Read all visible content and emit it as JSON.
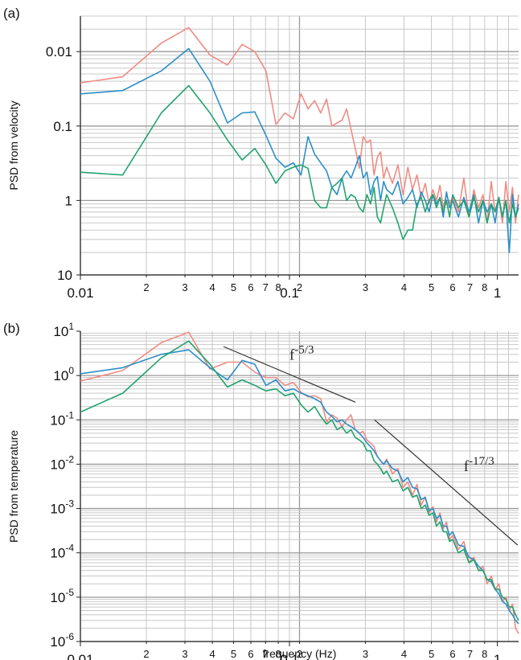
{
  "chart_data": [
    {
      "type": "line",
      "panel_label": "(a)",
      "title": "",
      "xlabel": "",
      "ylabel": "PSD from velocity",
      "xscale": "log",
      "yscale": "log",
      "xlim": [
        0.01,
        1
      ],
      "ylim": [
        0.01,
        30
      ],
      "grid": true,
      "legend": "none",
      "y_tick_labels": [
        "0.01",
        "0.1",
        "1",
        "10"
      ],
      "x_tick_labels": [
        "0.01",
        "2",
        "3",
        "4",
        "5",
        "6",
        "7",
        "8",
        "0.1",
        "2",
        "3",
        "4",
        "5",
        "6",
        "7",
        "8",
        "1"
      ],
      "series": [
        {
          "color": "#f08c84",
          "x": [
            0.01,
            0.0156,
            0.0234,
            0.0312,
            0.039,
            0.0469,
            0.0547,
            0.0625,
            0.0703,
            0.0781,
            0.0859,
            0.0938,
            0.1016,
            0.1094,
            0.1172,
            0.125,
            0.1328,
            0.1406,
            0.1484,
            0.1563,
            0.1641,
            0.1719,
            0.1797,
            0.1875,
            0.1953,
            0.2031,
            0.2109,
            0.2188,
            0.2266,
            0.2344,
            0.2422,
            0.25,
            0.2656,
            0.2812,
            0.2969,
            0.3125,
            0.3281,
            0.3438,
            0.3594,
            0.375,
            0.3906,
            0.4063,
            0.4219,
            0.4375,
            0.4531,
            0.4688,
            0.4844,
            0.5,
            0.5313,
            0.5625,
            0.5938,
            0.625,
            0.6563,
            0.6875,
            0.7188,
            0.75,
            0.7813,
            0.8125,
            0.8438,
            0.875,
            0.9063,
            0.9375,
            0.9688,
            1.0
          ],
          "y": [
            3.8,
            4.6,
            13,
            21,
            9,
            6.6,
            12.5,
            10,
            5.5,
            1.05,
            1.5,
            1.25,
            2.7,
            1.7,
            2.2,
            1.5,
            2.3,
            1.0,
            1.1,
            1.2,
            1.7,
            0.9,
            0.5,
            0.27,
            0.72,
            0.6,
            0.65,
            0.22,
            0.38,
            0.45,
            0.2,
            0.28,
            0.17,
            0.3,
            0.12,
            0.28,
            0.14,
            0.22,
            0.11,
            0.17,
            0.09,
            0.14,
            0.1,
            0.16,
            0.08,
            0.12,
            0.09,
            0.11,
            0.07,
            0.2,
            0.06,
            0.14,
            0.08,
            0.12,
            0.05,
            0.18,
            0.07,
            0.11,
            0.05,
            0.18,
            0.07,
            0.15,
            0.05,
            0.12
          ]
        },
        {
          "color": "#2b8fc9",
          "x": [
            0.01,
            0.0156,
            0.0234,
            0.0312,
            0.039,
            0.0469,
            0.0547,
            0.0625,
            0.0703,
            0.0781,
            0.0859,
            0.0938,
            0.1016,
            0.1094,
            0.1172,
            0.125,
            0.1328,
            0.1406,
            0.1484,
            0.1563,
            0.1641,
            0.1719,
            0.1797,
            0.1875,
            0.1953,
            0.2031,
            0.2109,
            0.2188,
            0.2266,
            0.2344,
            0.2422,
            0.25,
            0.2656,
            0.2812,
            0.2969,
            0.3125,
            0.3281,
            0.3438,
            0.3594,
            0.375,
            0.3906,
            0.4063,
            0.4219,
            0.4375,
            0.4531,
            0.4688,
            0.4844,
            0.5,
            0.5313,
            0.5625,
            0.5938,
            0.625,
            0.6563,
            0.6875,
            0.7188,
            0.75,
            0.7813,
            0.8125,
            0.8438,
            0.875,
            0.9063,
            0.9375,
            0.9688,
            1.0
          ],
          "y": [
            2.7,
            3.0,
            5.5,
            11,
            4.0,
            1.1,
            1.5,
            1.55,
            0.75,
            0.37,
            0.28,
            0.32,
            0.22,
            0.72,
            0.42,
            0.32,
            0.25,
            0.15,
            0.12,
            0.2,
            0.25,
            0.2,
            0.28,
            0.4,
            0.2,
            0.24,
            0.12,
            0.18,
            0.21,
            0.1,
            0.18,
            0.14,
            0.12,
            0.18,
            0.09,
            0.11,
            0.14,
            0.08,
            0.13,
            0.1,
            0.07,
            0.12,
            0.09,
            0.11,
            0.06,
            0.13,
            0.08,
            0.1,
            0.06,
            0.11,
            0.07,
            0.12,
            0.05,
            0.1,
            0.07,
            0.09,
            0.05,
            0.11,
            0.06,
            0.1,
            0.02,
            0.12,
            0.06,
            0.09
          ]
        },
        {
          "color": "#21a36f",
          "x": [
            0.01,
            0.0156,
            0.0234,
            0.0312,
            0.039,
            0.0469,
            0.0547,
            0.0625,
            0.0703,
            0.0781,
            0.0859,
            0.0938,
            0.1016,
            0.1094,
            0.1172,
            0.125,
            0.1328,
            0.1406,
            0.1484,
            0.1563,
            0.1641,
            0.1719,
            0.1797,
            0.1875,
            0.1953,
            0.2031,
            0.2109,
            0.2188,
            0.2266,
            0.2344,
            0.2422,
            0.25,
            0.2656,
            0.2812,
            0.2969,
            0.3125,
            0.3281,
            0.3438,
            0.3594,
            0.375,
            0.3906,
            0.4063,
            0.4219,
            0.4375,
            0.4531,
            0.4688,
            0.4844,
            0.5,
            0.5313,
            0.5625,
            0.5938,
            0.625,
            0.6563,
            0.6875,
            0.7188,
            0.75,
            0.7813,
            0.8125,
            0.8438,
            0.875,
            0.9063,
            0.9375,
            0.9688,
            1.0
          ],
          "y": [
            0.24,
            0.22,
            1.5,
            3.5,
            1.5,
            0.65,
            0.35,
            0.5,
            0.3,
            0.17,
            0.25,
            0.28,
            0.3,
            0.27,
            0.1,
            0.08,
            0.08,
            0.15,
            0.17,
            0.2,
            0.1,
            0.12,
            0.11,
            0.08,
            0.07,
            0.12,
            0.09,
            0.15,
            0.06,
            0.05,
            0.08,
            0.12,
            0.08,
            0.05,
            0.03,
            0.04,
            0.04,
            0.09,
            0.11,
            0.07,
            0.1,
            0.12,
            0.08,
            0.11,
            0.07,
            0.1,
            0.06,
            0.12,
            0.08,
            0.1,
            0.06,
            0.11,
            0.07,
            0.1,
            0.05,
            0.09,
            0.07,
            0.11,
            0.06,
            0.1,
            0.05,
            0.09,
            0.06,
            0.08
          ]
        }
      ]
    },
    {
      "type": "line",
      "panel_label": "(b)",
      "title": "",
      "xlabel": "frequency (Hz)",
      "ylabel": "PSD from temperature",
      "xscale": "log",
      "yscale": "log",
      "xlim": [
        0.01,
        1
      ],
      "ylim": [
        1e-06,
        10
      ],
      "grid": true,
      "legend": "none",
      "y_tick_labels": [
        {
          "base": "10",
          "exp": "1"
        },
        {
          "base": "10",
          "exp": "0"
        },
        {
          "base": "10",
          "exp": "-1"
        },
        {
          "base": "10",
          "exp": "-2"
        },
        {
          "base": "10",
          "exp": "-3"
        },
        {
          "base": "10",
          "exp": "-4"
        },
        {
          "base": "10",
          "exp": "-5"
        },
        {
          "base": "10",
          "exp": "-6"
        }
      ],
      "x_tick_labels": [
        "0.01",
        "2",
        "3",
        "4",
        "5",
        "6",
        "7",
        "8",
        "0.1",
        "2",
        "3",
        "4",
        "5",
        "6",
        "7",
        "8",
        "1"
      ],
      "annotations": [
        {
          "base": "f",
          "exp": "-5/3",
          "line": {
            "x": [
              0.045,
              0.18
            ],
            "y": [
              4.5,
              0.25
            ]
          }
        },
        {
          "base": "f",
          "exp": "-17/3",
          "line": {
            "x": [
              0.22,
              0.99
            ],
            "y": [
              0.1,
              0.00015
            ]
          }
        }
      ],
      "series": [
        {
          "color": "#f08c84",
          "x": [
            0.01,
            0.0156,
            0.0234,
            0.0312,
            0.039,
            0.0469,
            0.0547,
            0.0625,
            0.0703,
            0.0781,
            0.0859,
            0.0938,
            0.1016,
            0.1094,
            0.1172,
            0.125,
            0.1328,
            0.1406,
            0.1484,
            0.1563,
            0.1641,
            0.1719,
            0.1797,
            0.1875,
            0.1953,
            0.2031,
            0.2109,
            0.2188,
            0.2266,
            0.2344,
            0.2422,
            0.25,
            0.2656,
            0.2812,
            0.2969,
            0.3125,
            0.3281,
            0.3438,
            0.3594,
            0.375,
            0.3906,
            0.4063,
            0.4219,
            0.4375,
            0.4531,
            0.4688,
            0.4844,
            0.5,
            0.5313,
            0.5625,
            0.5938,
            0.625,
            0.6563,
            0.6875,
            0.7188,
            0.75,
            0.7813,
            0.8125,
            0.8438,
            0.875,
            0.9063,
            0.9375,
            0.9688,
            1.0
          ],
          "y": [
            0.75,
            1.3,
            5.5,
            9.5,
            1.4,
            2.0,
            2.0,
            1.2,
            0.9,
            0.9,
            0.6,
            0.7,
            0.42,
            0.33,
            0.35,
            0.3,
            0.09,
            0.13,
            0.11,
            0.07,
            0.1,
            0.13,
            0.06,
            0.05,
            0.055,
            0.035,
            0.03,
            0.025,
            0.015,
            0.012,
            0.01,
            0.013,
            0.006,
            0.008,
            0.003,
            0.004,
            0.002,
            0.0035,
            0.0012,
            0.0018,
            0.0008,
            0.0011,
            0.0005,
            0.0008,
            0.00035,
            0.0005,
            0.0002,
            0.00025,
            0.00012,
            0.00018,
            6e-05,
            8e-05,
            4e-05,
            5e-05,
            2e-05,
            3e-05,
            1.5e-05,
            2e-05,
            8e-06,
            1e-05,
            5e-06,
            7e-06,
            2e-06,
            1.5e-06
          ]
        },
        {
          "color": "#2b8fc9",
          "x": [
            0.01,
            0.0156,
            0.0234,
            0.0312,
            0.039,
            0.0469,
            0.0547,
            0.0625,
            0.0703,
            0.0781,
            0.0859,
            0.0938,
            0.1016,
            0.1094,
            0.1172,
            0.125,
            0.1328,
            0.1406,
            0.1484,
            0.1563,
            0.1641,
            0.1719,
            0.1797,
            0.1875,
            0.1953,
            0.2031,
            0.2109,
            0.2188,
            0.2266,
            0.2344,
            0.2422,
            0.25,
            0.2656,
            0.2812,
            0.2969,
            0.3125,
            0.3281,
            0.3438,
            0.3594,
            0.375,
            0.3906,
            0.4063,
            0.4219,
            0.4375,
            0.4531,
            0.4688,
            0.4844,
            0.5,
            0.5313,
            0.5625,
            0.5938,
            0.625,
            0.6563,
            0.6875,
            0.7188,
            0.75,
            0.7813,
            0.8125,
            0.8438,
            0.875,
            0.9063,
            0.9375,
            0.9688,
            1.0
          ],
          "y": [
            1.1,
            1.5,
            3.0,
            3.8,
            1.5,
            0.8,
            2.2,
            1.8,
            0.6,
            0.8,
            0.45,
            0.5,
            0.4,
            0.35,
            0.3,
            0.25,
            0.15,
            0.12,
            0.09,
            0.1,
            0.08,
            0.07,
            0.06,
            0.05,
            0.04,
            0.03,
            0.025,
            0.02,
            0.015,
            0.012,
            0.01,
            0.012,
            0.008,
            0.007,
            0.004,
            0.005,
            0.003,
            0.0028,
            0.0016,
            0.0018,
            0.0009,
            0.001,
            0.0006,
            0.0007,
            0.0004,
            0.0004,
            0.00025,
            0.0003,
            0.00015,
            0.00014,
            8e-05,
            7e-05,
            5e-05,
            4e-05,
            2.5e-05,
            2.2e-05,
            1.5e-05,
            1.2e-05,
            8e-06,
            7e-06,
            5e-06,
            4e-06,
            3e-06,
            2.5e-06
          ]
        },
        {
          "color": "#21a36f",
          "x": [
            0.01,
            0.0156,
            0.0234,
            0.0312,
            0.039,
            0.0469,
            0.0547,
            0.0625,
            0.0703,
            0.0781,
            0.0859,
            0.0938,
            0.1016,
            0.1094,
            0.1172,
            0.125,
            0.1328,
            0.1406,
            0.1484,
            0.1563,
            0.1641,
            0.1719,
            0.1797,
            0.1875,
            0.1953,
            0.2031,
            0.2109,
            0.2188,
            0.2266,
            0.2344,
            0.2422,
            0.25,
            0.2656,
            0.2812,
            0.2969,
            0.3125,
            0.3281,
            0.3438,
            0.3594,
            0.375,
            0.3906,
            0.4063,
            0.4219,
            0.4375,
            0.4531,
            0.4688,
            0.4844,
            0.5,
            0.5313,
            0.5625,
            0.5938,
            0.625,
            0.6563,
            0.6875,
            0.7188,
            0.75,
            0.7813,
            0.8125,
            0.8438,
            0.875,
            0.9063,
            0.9375,
            0.9688,
            1.0
          ],
          "y": [
            0.15,
            0.4,
            2.5,
            6.0,
            1.8,
            0.55,
            0.8,
            0.6,
            0.45,
            0.5,
            0.35,
            0.4,
            0.22,
            0.15,
            0.2,
            0.12,
            0.08,
            0.1,
            0.06,
            0.07,
            0.05,
            0.06,
            0.04,
            0.035,
            0.03,
            0.02,
            0.02,
            0.012,
            0.01,
            0.008,
            0.006,
            0.007,
            0.004,
            0.0045,
            0.0025,
            0.003,
            0.0018,
            0.002,
            0.001,
            0.0012,
            0.0007,
            0.0008,
            0.0004,
            0.0005,
            0.0003,
            0.0003,
            0.00018,
            0.0002,
            0.0001,
            0.00012,
            6e-05,
            7e-05,
            4e-05,
            4e-05,
            2.5e-05,
            2.5e-05,
            1.5e-05,
            1.5e-05,
            1e-05,
            9e-06,
            6e-06,
            6e-06,
            4e-06,
            3e-06
          ]
        }
      ]
    }
  ]
}
